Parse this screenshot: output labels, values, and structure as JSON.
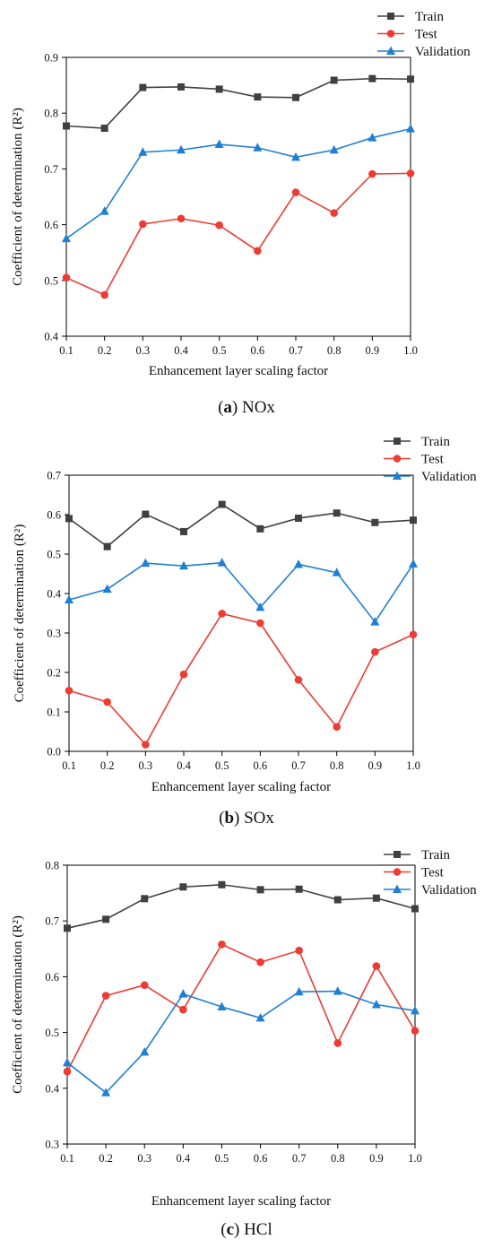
{
  "chart_data": [
    {
      "type": "line",
      "panel_label": "a",
      "caption": "NOx",
      "xlabel": "Enhancement layer scaling factor",
      "ylabel": "Coefficient of determination (R²)",
      "xlim": [
        0.1,
        1.0
      ],
      "ylim": [
        0.4,
        0.9
      ],
      "x": [
        0.1,
        0.2,
        0.3,
        0.4,
        0.5,
        0.6,
        0.7,
        0.8,
        0.9,
        1.0
      ],
      "x_tick_labels": [
        "0.1",
        "0.2",
        "0.3",
        "0.4",
        "0.5",
        "0.6",
        "0.7",
        "0.8",
        "0.9",
        "1.0"
      ],
      "y_ticks": [
        0.4,
        0.5,
        0.6,
        0.7,
        0.8,
        0.9
      ],
      "y_tick_labels": [
        "0.4",
        "0.5",
        "0.6",
        "0.7",
        "0.8",
        "0.9"
      ],
      "legend_position": "top-right",
      "series": [
        {
          "name": "Train",
          "color": "#404040",
          "marker": "square",
          "values": [
            0.777,
            0.773,
            0.846,
            0.847,
            0.843,
            0.829,
            0.828,
            0.859,
            0.862,
            0.861
          ]
        },
        {
          "name": "Test",
          "color": "#ee3b33",
          "marker": "circle",
          "values": [
            0.505,
            0.474,
            0.601,
            0.611,
            0.599,
            0.553,
            0.658,
            0.621,
            0.691,
            0.692
          ]
        },
        {
          "name": "Validation",
          "color": "#1f7fd4",
          "marker": "triangle",
          "values": [
            0.575,
            0.624,
            0.73,
            0.734,
            0.744,
            0.738,
            0.721,
            0.734,
            0.756,
            0.772
          ]
        }
      ]
    },
    {
      "type": "line",
      "panel_label": "b",
      "caption": "SOx",
      "xlabel": "Enhancement layer scaling factor",
      "ylabel": "Coefficient of determination (R²)",
      "xlim": [
        0.1,
        1.0
      ],
      "ylim": [
        0.0,
        0.7
      ],
      "x": [
        0.1,
        0.2,
        0.3,
        0.4,
        0.5,
        0.6,
        0.7,
        0.8,
        0.9,
        1.0
      ],
      "x_tick_labels": [
        "0.1",
        "0.2",
        "0.3",
        "0.4",
        "0.5",
        "0.6",
        "0.7",
        "0.8",
        "0.9",
        "1.0"
      ],
      "y_ticks": [
        0.0,
        0.1,
        0.2,
        0.3,
        0.4,
        0.5,
        0.6,
        0.7
      ],
      "y_tick_labels": [
        "0.0",
        "0.1",
        "0.2",
        "0.3",
        "0.4",
        "0.5",
        "0.6",
        "0.7"
      ],
      "legend_position": "top-right",
      "series": [
        {
          "name": "Train",
          "color": "#404040",
          "marker": "square",
          "values": [
            0.59,
            0.519,
            0.601,
            0.557,
            0.626,
            0.564,
            0.591,
            0.604,
            0.58,
            0.586
          ]
        },
        {
          "name": "Test",
          "color": "#ee3b33",
          "marker": "circle",
          "values": [
            0.154,
            0.125,
            0.017,
            0.195,
            0.349,
            0.325,
            0.181,
            0.062,
            0.252,
            0.296
          ]
        },
        {
          "name": "Validation",
          "color": "#1f7fd4",
          "marker": "triangle",
          "values": [
            0.384,
            0.411,
            0.477,
            0.47,
            0.478,
            0.365,
            0.474,
            0.453,
            0.328,
            0.475
          ]
        }
      ]
    },
    {
      "type": "line",
      "panel_label": "c",
      "caption": "HCl",
      "xlabel": "Enhancement layer scaling factor",
      "ylabel": "Coefficient of determination (R²)",
      "xlim": [
        0.1,
        1.0
      ],
      "ylim": [
        0.3,
        0.8
      ],
      "x": [
        0.1,
        0.2,
        0.3,
        0.4,
        0.5,
        0.6,
        0.7,
        0.8,
        0.9,
        1.0
      ],
      "x_tick_labels": [
        "0.1",
        "0.2",
        "0.3",
        "0.4",
        "0.5",
        "0.6",
        "0.7",
        "0.8",
        "0.9",
        "1.0"
      ],
      "y_ticks": [
        0.3,
        0.4,
        0.5,
        0.6,
        0.7,
        0.8
      ],
      "y_tick_labels": [
        "0.3",
        "0.4",
        "0.5",
        "0.6",
        "0.7",
        "0.8"
      ],
      "legend_position": "top-right",
      "series": [
        {
          "name": "Train",
          "color": "#404040",
          "marker": "square",
          "values": [
            0.687,
            0.703,
            0.74,
            0.761,
            0.765,
            0.756,
            0.757,
            0.738,
            0.741,
            0.722
          ]
        },
        {
          "name": "Test",
          "color": "#ee3b33",
          "marker": "circle",
          "values": [
            0.43,
            0.566,
            0.585,
            0.541,
            0.658,
            0.626,
            0.647,
            0.481,
            0.619,
            0.503
          ]
        },
        {
          "name": "Validation",
          "color": "#1f7fd4",
          "marker": "triangle",
          "values": [
            0.446,
            0.392,
            0.465,
            0.569,
            0.546,
            0.526,
            0.573,
            0.574,
            0.55,
            0.539
          ]
        }
      ]
    }
  ]
}
